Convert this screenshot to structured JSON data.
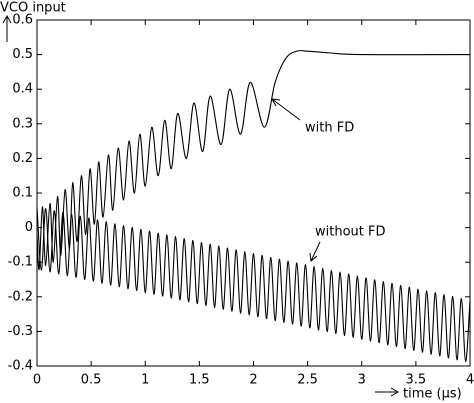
{
  "chart_data": {
    "type": "line",
    "y_label": "VCO input",
    "x_label": "time (μs)",
    "xlim": [
      0,
      4
    ],
    "xticks": [
      0,
      0.5,
      1,
      1.5,
      2,
      2.5,
      3,
      3.5,
      4
    ],
    "ylim": [
      -0.4,
      0.6
    ],
    "yticks": [
      -0.4,
      -0.3,
      -0.2,
      -0.1,
      0,
      0.1,
      0.2,
      0.3,
      0.4,
      0.5,
      0.6
    ],
    "grid": false,
    "series": [
      {
        "name": "with FD",
        "color": "#000000",
        "x": [
          0,
          0.02,
          0.05,
          0.08,
          0.12,
          0.15,
          0.19,
          0.22,
          0.26,
          0.3,
          0.33,
          0.37,
          0.41,
          0.45,
          0.49,
          0.53,
          0.57,
          0.61,
          0.66,
          0.7,
          0.75,
          0.8,
          0.85,
          0.9,
          0.95,
          1.0,
          1.06,
          1.12,
          1.18,
          1.24,
          1.3,
          1.38,
          1.45,
          1.53,
          1.6,
          1.7,
          1.78,
          1.88,
          1.97,
          2.1,
          2.2,
          2.3,
          2.4,
          2.5,
          2.7,
          3.0,
          4.0
        ],
        "values": [
          -0.02,
          -0.12,
          0.06,
          -0.11,
          0.07,
          -0.1,
          0.09,
          -0.08,
          0.11,
          -0.06,
          0.13,
          -0.04,
          0.15,
          -0.02,
          0.17,
          0.01,
          0.19,
          0.03,
          0.21,
          0.05,
          0.23,
          0.08,
          0.25,
          0.1,
          0.27,
          0.12,
          0.29,
          0.15,
          0.31,
          0.17,
          0.33,
          0.2,
          0.36,
          0.22,
          0.38,
          0.24,
          0.4,
          0.27,
          0.42,
          0.29,
          0.42,
          0.49,
          0.51,
          0.51,
          0.505,
          0.5,
          0.5
        ]
      },
      {
        "name": "without FD",
        "color": "#000000",
        "x": [
          0,
          0.04,
          0.08,
          0.12,
          0.16,
          0.2,
          0.24,
          0.28,
          0.32,
          0.36,
          0.4,
          0.44,
          0.48,
          0.52,
          0.56,
          0.6,
          0.64,
          0.68,
          0.72,
          0.76,
          0.8,
          0.84,
          0.88,
          0.92,
          0.96,
          1.0,
          1.04,
          1.08,
          1.12,
          1.16,
          1.2,
          1.24,
          1.28,
          1.32,
          1.36,
          1.4,
          1.44,
          1.48,
          1.52,
          1.56,
          1.6,
          1.64,
          1.68,
          1.72,
          1.76,
          1.8,
          1.84,
          1.88,
          1.92,
          1.96,
          2.0,
          2.04,
          2.08,
          2.12,
          2.16,
          2.2,
          2.24,
          2.28,
          2.32,
          2.36,
          2.4,
          2.44,
          2.48,
          2.52,
          2.56,
          2.6,
          2.64,
          2.68,
          2.72,
          2.76,
          2.8,
          2.84,
          2.88,
          2.92,
          2.96,
          3.0,
          3.04,
          3.08,
          3.12,
          3.16,
          3.2,
          3.24,
          3.28,
          3.32,
          3.36,
          3.4,
          3.44,
          3.48,
          3.52,
          3.56,
          3.6,
          3.64,
          3.68,
          3.72,
          3.76,
          3.8,
          3.84,
          3.88,
          3.92,
          3.96,
          4.0
        ],
        "values": [
          0.06,
          -0.123,
          0.055,
          -0.128,
          0.049,
          -0.134,
          0.044,
          -0.139,
          0.038,
          -0.144,
          0.033,
          -0.15,
          0.028,
          -0.155,
          0.022,
          -0.161,
          0.017,
          -0.166,
          0.011,
          -0.171,
          0.006,
          -0.177,
          0.001,
          -0.182,
          -0.005,
          -0.188,
          -0.01,
          -0.193,
          -0.016,
          -0.198,
          -0.021,
          -0.204,
          -0.026,
          -0.209,
          -0.032,
          -0.215,
          -0.037,
          -0.22,
          -0.043,
          -0.225,
          -0.048,
          -0.231,
          -0.053,
          -0.236,
          -0.059,
          -0.242,
          -0.064,
          -0.247,
          -0.07,
          -0.252,
          -0.075,
          -0.258,
          -0.08,
          -0.263,
          -0.086,
          -0.269,
          -0.091,
          -0.274,
          -0.097,
          -0.279,
          -0.102,
          -0.285,
          -0.107,
          -0.29,
          -0.113,
          -0.296,
          -0.118,
          -0.301,
          -0.124,
          -0.306,
          -0.129,
          -0.312,
          -0.134,
          -0.317,
          -0.14,
          -0.323,
          -0.145,
          -0.328,
          -0.151,
          -0.333,
          -0.156,
          -0.339,
          -0.161,
          -0.344,
          -0.167,
          -0.35,
          -0.172,
          -0.355,
          -0.178,
          -0.36,
          -0.183,
          -0.366,
          -0.188,
          -0.371,
          -0.194,
          -0.377,
          -0.199,
          -0.382,
          -0.205,
          -0.387,
          -0.21
        ]
      }
    ]
  }
}
